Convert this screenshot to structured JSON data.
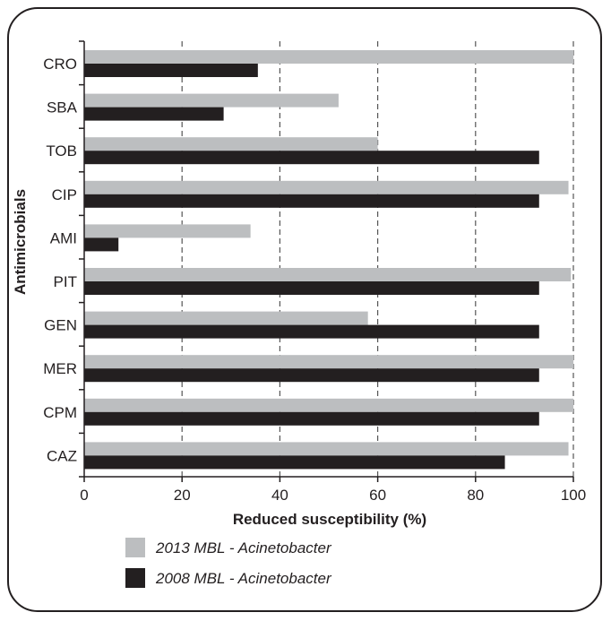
{
  "chart_data": {
    "type": "bar",
    "orientation": "horizontal",
    "categories": [
      "CRO",
      "SBA",
      "TOB",
      "CIP",
      "AMI",
      "PIT",
      "GEN",
      "MER",
      "CPM",
      "CAZ"
    ],
    "series": [
      {
        "name": "2013 MBL - Acinetobacter",
        "color": "#bcbec0",
        "values": [
          100,
          52,
          60,
          99,
          34,
          99.5,
          58,
          100,
          100,
          99
        ]
      },
      {
        "name": "2008 MBL - Acinetobacter",
        "color": "#231f20",
        "values": [
          35.5,
          28.5,
          93,
          93,
          7,
          93,
          93,
          93,
          93,
          86
        ]
      }
    ],
    "xlabel": "Reduced susceptibility (%)",
    "ylabel": "Antimicrobials",
    "xlim": [
      0,
      100
    ],
    "xticks": [
      0,
      20,
      40,
      60,
      80,
      100
    ],
    "grid": "vertical-dashed",
    "legend_position": "bottom-left"
  }
}
